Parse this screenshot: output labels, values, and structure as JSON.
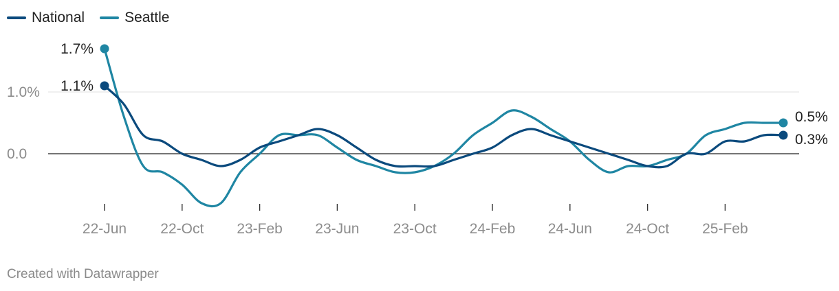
{
  "legend": {
    "items": [
      {
        "label": "National",
        "color": "#0b4a7d"
      },
      {
        "label": "Seattle",
        "color": "#1f86a3"
      }
    ]
  },
  "footer": {
    "credit": "Created with Datawrapper"
  },
  "chart_data": {
    "type": "line",
    "title": "",
    "xlabel": "",
    "ylabel": "",
    "x_ticks": [
      "22-Jun",
      "22-Oct",
      "23-Feb",
      "23-Jun",
      "23-Oct",
      "24-Feb",
      "24-Jun",
      "24-Oct",
      "25-Feb"
    ],
    "y_ticks": [
      "1.0%",
      "0.0"
    ],
    "ylim": [
      -0.9,
      1.8
    ],
    "grid": "horizontal",
    "legend": "top-left",
    "x": [
      "22-Jun",
      "22-Jul",
      "22-Aug",
      "22-Sep",
      "22-Oct",
      "22-Nov",
      "22-Dec",
      "23-Jan",
      "23-Feb",
      "23-Mar",
      "23-Apr",
      "23-May",
      "23-Jun",
      "23-Jul",
      "23-Aug",
      "23-Sep",
      "23-Oct",
      "23-Nov",
      "23-Dec",
      "24-Jan",
      "24-Feb",
      "24-Mar",
      "24-Apr",
      "24-May",
      "24-Jun",
      "24-Jul",
      "24-Aug",
      "24-Sep",
      "24-Oct",
      "24-Nov",
      "24-Dec",
      "25-Jan",
      "25-Feb",
      "25-Mar",
      "25-Apr",
      "25-May"
    ],
    "series": [
      {
        "name": "National",
        "color": "#0b4a7d",
        "end_label": "0.3%",
        "start_label": "1.1%",
        "values": [
          1.1,
          0.8,
          0.3,
          0.2,
          0.0,
          -0.1,
          -0.2,
          -0.1,
          0.1,
          0.2,
          0.3,
          0.4,
          0.3,
          0.1,
          -0.1,
          -0.2,
          -0.2,
          -0.2,
          -0.1,
          0.0,
          0.1,
          0.3,
          0.4,
          0.3,
          0.2,
          0.1,
          0.0,
          -0.1,
          -0.2,
          -0.2,
          0.0,
          0.0,
          0.2,
          0.2,
          0.3,
          0.3
        ]
      },
      {
        "name": "Seattle",
        "color": "#1f86a3",
        "end_label": "0.5%",
        "start_label": "1.7%",
        "values": [
          1.7,
          0.6,
          -0.2,
          -0.3,
          -0.5,
          -0.8,
          -0.8,
          -0.3,
          0.0,
          0.3,
          0.3,
          0.3,
          0.1,
          -0.1,
          -0.2,
          -0.3,
          -0.3,
          -0.2,
          0.0,
          0.3,
          0.5,
          0.7,
          0.6,
          0.4,
          0.2,
          -0.1,
          -0.3,
          -0.2,
          -0.2,
          -0.1,
          0.0,
          0.3,
          0.4,
          0.5,
          0.5,
          0.5
        ]
      }
    ]
  }
}
